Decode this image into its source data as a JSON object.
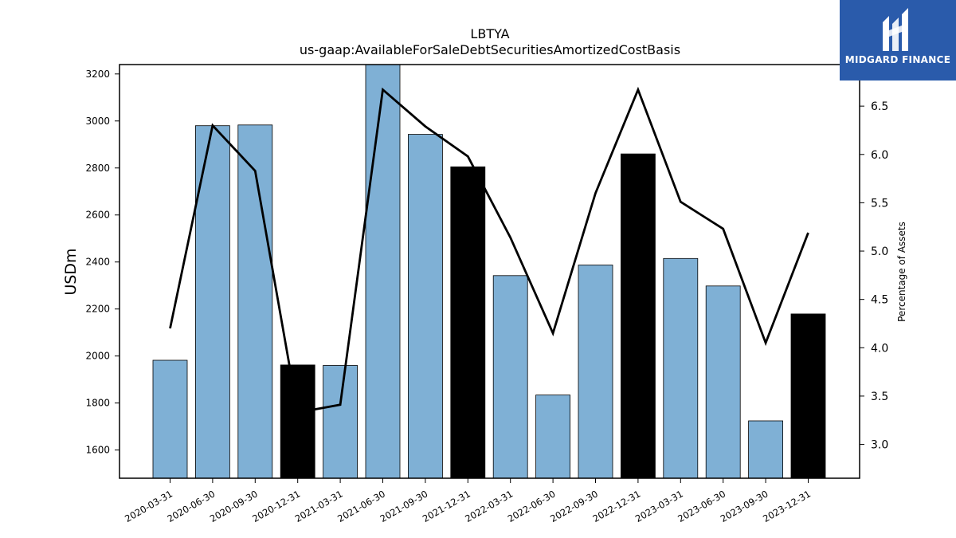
{
  "chart_data": {
    "type": "bar",
    "title": "LBTYA",
    "subtitle": "us-gaap:AvailableForSaleDebtSecuritiesAmortizedCostBasis",
    "ylabel": "USDm",
    "y2label": "Percentage of Assets",
    "ylim": [
      1480,
      3240
    ],
    "y2lim": [
      2.65,
      6.93
    ],
    "yticks": [
      1600,
      1800,
      2000,
      2200,
      2400,
      2600,
      2800,
      3000,
      3200
    ],
    "y2ticks": [
      3.0,
      3.5,
      4.0,
      4.5,
      5.0,
      5.5,
      6.0,
      6.5
    ],
    "categories": [
      "2020-03-31",
      "2020-06-30",
      "2020-09-30",
      "2020-12-31",
      "2021-03-31",
      "2021-06-30",
      "2021-09-30",
      "2021-12-31",
      "2022-03-31",
      "2022-06-30",
      "2022-09-30",
      "2022-12-31",
      "2023-03-31",
      "2023-06-30",
      "2023-09-30",
      "2023-12-31"
    ],
    "series": [
      {
        "type": "bar",
        "axis": "left",
        "values": [
          1982,
          2980,
          2983,
          1962,
          1960,
          3240,
          2943,
          2805,
          2342,
          1834,
          2387,
          2860,
          2415,
          2298,
          1724,
          2179
        ],
        "colors": [
          "#7fb0d5",
          "#7fb0d5",
          "#7fb0d5",
          "#000000",
          "#7fb0d5",
          "#7fb0d5",
          "#7fb0d5",
          "#000000",
          "#7fb0d5",
          "#7fb0d5",
          "#7fb0d5",
          "#000000",
          "#7fb0d5",
          "#7fb0d5",
          "#7fb0d5",
          "#000000"
        ]
      },
      {
        "type": "line",
        "axis": "right",
        "color": "#000000",
        "values": [
          4.2,
          6.3,
          5.83,
          3.33,
          3.41,
          6.67,
          6.29,
          5.98,
          5.14,
          4.15,
          5.6,
          6.67,
          5.51,
          5.23,
          4.05,
          5.19
        ]
      }
    ],
    "grid": false
  },
  "logo": {
    "text": "MIDGARD FINANCE",
    "background": "#2a5bab"
  }
}
